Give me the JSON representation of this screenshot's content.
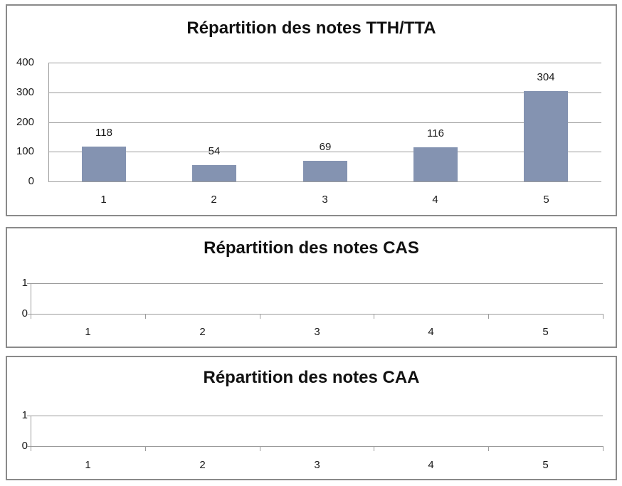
{
  "colors": {
    "bar": "#8493B1",
    "panel_border": "#8a8a8a",
    "grid_line": "#9b9b9b",
    "text": "#1a1a1a"
  },
  "chart_data": [
    {
      "type": "bar",
      "title": "Répartition des notes TTH/TTA",
      "categories": [
        "1",
        "2",
        "3",
        "4",
        "5"
      ],
      "values": [
        118,
        54,
        69,
        116,
        304
      ],
      "data_labels": [
        "118",
        "54",
        "69",
        "116",
        "304"
      ],
      "xlabel": "",
      "ylabel": "",
      "ylim": [
        0,
        400
      ],
      "yticks": [
        400,
        300,
        200,
        100,
        0
      ],
      "grid": true,
      "legend": false
    },
    {
      "type": "bar",
      "title": "Répartition des notes CAS",
      "categories": [
        "1",
        "2",
        "3",
        "4",
        "5"
      ],
      "values": [],
      "data_labels": [],
      "xlabel": "",
      "ylabel": "",
      "ylim": [
        0,
        1
      ],
      "yticks": [
        1,
        0
      ],
      "grid": true,
      "legend": false
    },
    {
      "type": "bar",
      "title": "Répartition des notes CAA",
      "categories": [
        "1",
        "2",
        "3",
        "4",
        "5"
      ],
      "values": [],
      "data_labels": [],
      "xlabel": "",
      "ylabel": "",
      "ylim": [
        0,
        1
      ],
      "yticks": [
        1,
        0
      ],
      "grid": true,
      "legend": false
    }
  ]
}
